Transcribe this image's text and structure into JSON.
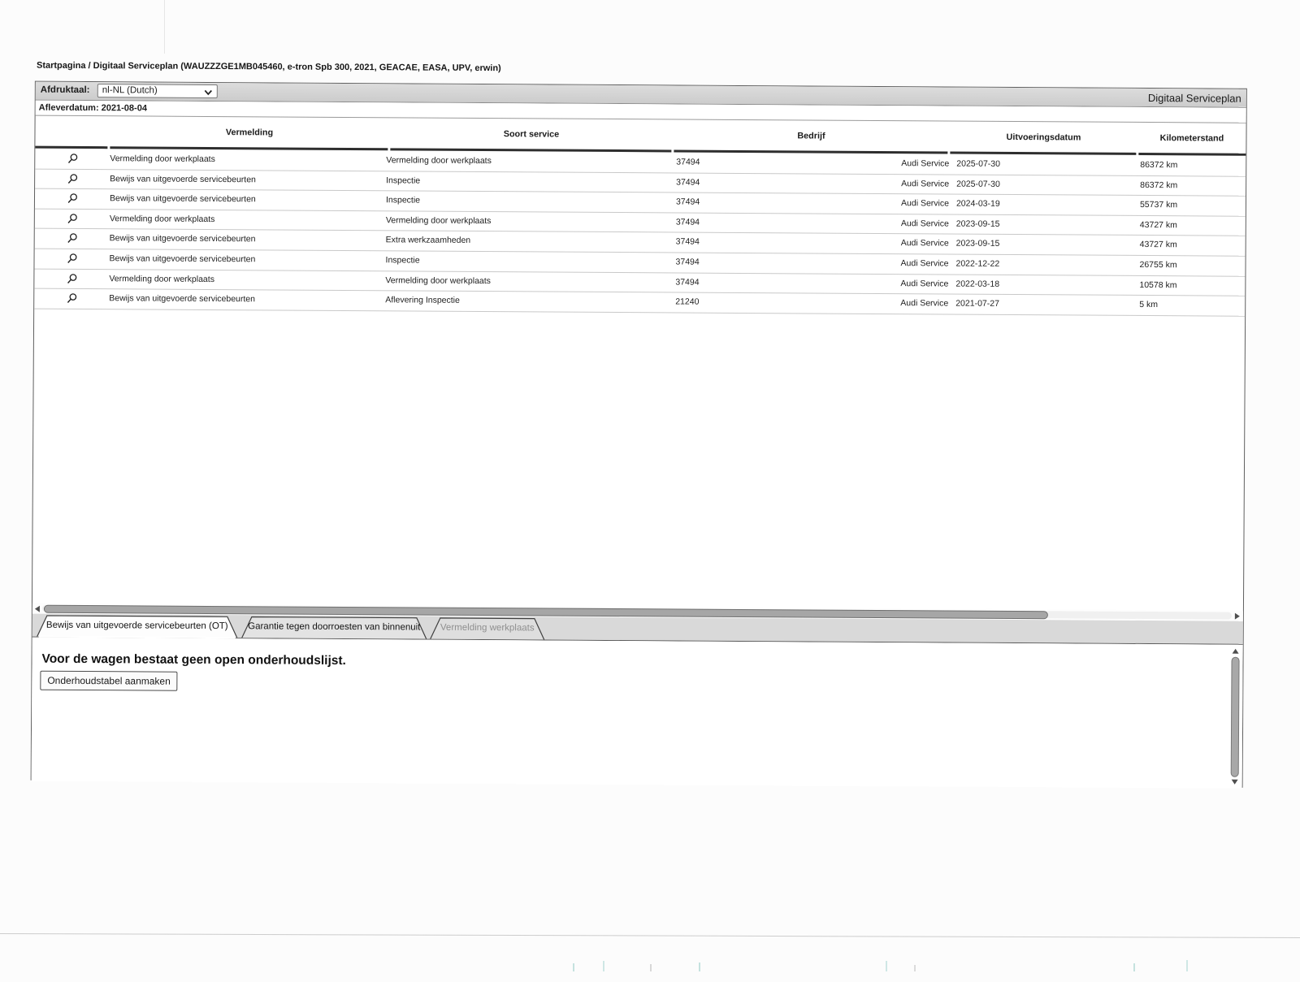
{
  "header": {
    "breadcrumb": "Startpagina / Digitaal Serviceplan (WAUZZZGE1MB045460, e-tron Spb 300, 2021, GEACAE, EASA, UPV, erwin)"
  },
  "toolbar": {
    "language_label": "Afdruktaal:",
    "language_value": "nl-NL (Dutch)",
    "title": "Digitaal Serviceplan"
  },
  "delivery": {
    "text": "Afleverdatum: 2021-08-04"
  },
  "table": {
    "columns": [
      "Vermelding",
      "Soort service",
      "Bedrijf",
      "Uitvoeringsdatum",
      "Kilometerstand"
    ],
    "row_icon": "magnifier-icon",
    "rows": [
      {
        "vermelding": "Vermelding door werkplaats",
        "soort_service": "Vermelding door werkplaats",
        "bedrijf_nr": "37494",
        "bedrijf": "Audi Service",
        "uitvoeringsdatum": "2025-07-30",
        "kilometerstand": "86372 km"
      },
      {
        "vermelding": "Bewijs van uitgevoerde servicebeurten",
        "soort_service": "Inspectie",
        "bedrijf_nr": "37494",
        "bedrijf": "Audi Service",
        "uitvoeringsdatum": "2025-07-30",
        "kilometerstand": "86372 km"
      },
      {
        "vermelding": "Bewijs van uitgevoerde servicebeurten",
        "soort_service": "Inspectie",
        "bedrijf_nr": "37494",
        "bedrijf": "Audi Service",
        "uitvoeringsdatum": "2024-03-19",
        "kilometerstand": "55737 km"
      },
      {
        "vermelding": "Vermelding door werkplaats",
        "soort_service": "Vermelding door werkplaats",
        "bedrijf_nr": "37494",
        "bedrijf": "Audi Service",
        "uitvoeringsdatum": "2023-09-15",
        "kilometerstand": "43727 km"
      },
      {
        "vermelding": "Bewijs van uitgevoerde servicebeurten",
        "soort_service": "Extra werkzaamheden",
        "bedrijf_nr": "37494",
        "bedrijf": "Audi Service",
        "uitvoeringsdatum": "2023-09-15",
        "kilometerstand": "43727 km"
      },
      {
        "vermelding": "Bewijs van uitgevoerde servicebeurten",
        "soort_service": "Inspectie",
        "bedrijf_nr": "37494",
        "bedrijf": "Audi Service",
        "uitvoeringsdatum": "2022-12-22",
        "kilometerstand": "26755 km"
      },
      {
        "vermelding": "Vermelding door werkplaats",
        "soort_service": "Vermelding door werkplaats",
        "bedrijf_nr": "37494",
        "bedrijf": "Audi Service",
        "uitvoeringsdatum": "2022-03-18",
        "kilometerstand": "10578 km"
      },
      {
        "vermelding": "Bewijs van uitgevoerde servicebeurten",
        "soort_service": "Aflevering Inspectie",
        "bedrijf_nr": "21240",
        "bedrijf": "Audi Service",
        "uitvoeringsdatum": "2021-07-27",
        "kilometerstand": "5 km"
      }
    ]
  },
  "tabs": [
    {
      "label": "Bewijs van uitgevoerde servicebeurten (OT)",
      "state": "active"
    },
    {
      "label": "Garantie tegen doorroesten van binnenuit",
      "state": "normal"
    },
    {
      "label": "Vermelding werkplaats",
      "state": "disabled"
    }
  ],
  "panel": {
    "message": "Voor de wagen bestaat geen open onderhoudslijst.",
    "button_label": "Onderhoudstabel aanmaken"
  },
  "colors": {
    "toolbar_gray": "#d7d7d7",
    "tabstrip_gray": "#d9d9d9",
    "border_dark": "#5f5f5f",
    "header_rule": "#2e2e2e",
    "row_line": "#c9c9c9",
    "scroll_thumb": "#a6a6a6",
    "disabled_text": "#8f8f8f"
  }
}
